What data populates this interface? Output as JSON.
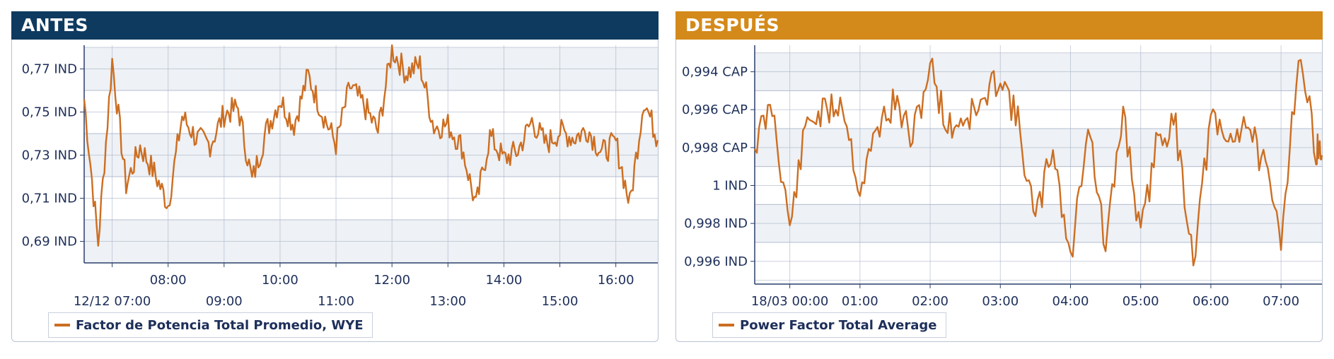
{
  "colors": {
    "antes_header": "#0f3a5f",
    "despues_header": "#d48a1a",
    "series": "#cc6e22",
    "band": "#eef1f5",
    "grid": "#a9b4c8",
    "axis": "#2a3f6b"
  },
  "chart_data": [
    {
      "type": "line",
      "title": "ANTES",
      "legend": "bottom-left",
      "grid": true,
      "y_ticks": [
        {
          "value": 0.77,
          "label": "0,77 IND"
        },
        {
          "value": 0.75,
          "label": "0,75 IND"
        },
        {
          "value": 0.73,
          "label": "0,73 IND"
        },
        {
          "value": 0.71,
          "label": "0,71 IND"
        },
        {
          "value": 0.69,
          "label": "0,69 IND"
        }
      ],
      "ylim": [
        0.68,
        0.781
      ],
      "xlim": [
        "12/12 06:30",
        "16:45"
      ],
      "x_ticks": [
        {
          "hour": 7,
          "label": "12/12 07:00",
          "row": 2
        },
        {
          "hour": 8,
          "label": "08:00",
          "row": 1
        },
        {
          "hour": 9,
          "label": "09:00",
          "row": 2
        },
        {
          "hour": 10,
          "label": "10:00",
          "row": 1
        },
        {
          "hour": 11,
          "label": "11:00",
          "row": 2
        },
        {
          "hour": 12,
          "label": "12:00",
          "row": 1
        },
        {
          "hour": 13,
          "label": "13:00",
          "row": 2
        },
        {
          "hour": 14,
          "label": "14:00",
          "row": 1
        },
        {
          "hour": 15,
          "label": "15:00",
          "row": 2
        },
        {
          "hour": 16,
          "label": "16:00",
          "row": 1
        }
      ],
      "series": [
        {
          "name": "Factor de Potencia Total Promedio, WYE",
          "x": [
            "06:30",
            "06:45",
            "07:00",
            "07:15",
            "07:30",
            "07:45",
            "08:00",
            "08:15",
            "08:30",
            "08:45",
            "09:00",
            "09:15",
            "09:30",
            "09:45",
            "10:00",
            "10:15",
            "10:30",
            "10:45",
            "11:00",
            "11:15",
            "11:30",
            "11:45",
            "12:00",
            "12:15",
            "12:30",
            "12:45",
            "13:00",
            "13:15",
            "13:30",
            "13:45",
            "14:00",
            "14:15",
            "14:30",
            "14:45",
            "15:00",
            "15:15",
            "15:30",
            "15:45",
            "16:00",
            "16:15",
            "16:30",
            "16:45"
          ],
          "values": [
            0.756,
            0.689,
            0.774,
            0.716,
            0.734,
            0.722,
            0.707,
            0.748,
            0.738,
            0.735,
            0.749,
            0.752,
            0.718,
            0.741,
            0.756,
            0.744,
            0.767,
            0.75,
            0.735,
            0.762,
            0.753,
            0.741,
            0.779,
            0.768,
            0.772,
            0.743,
            0.744,
            0.734,
            0.706,
            0.739,
            0.728,
            0.732,
            0.746,
            0.735,
            0.741,
            0.738,
            0.742,
            0.731,
            0.736,
            0.707,
            0.756,
            0.737
          ]
        }
      ]
    },
    {
      "type": "line",
      "title": "DESPUÉS",
      "legend": "bottom-left",
      "grid": true,
      "y_ticks": [
        {
          "value": -6,
          "label": "0,994 CAP"
        },
        {
          "value": -4,
          "label": "0,996 CAP"
        },
        {
          "value": -2,
          "label": "0,998 CAP"
        },
        {
          "value": 0,
          "label": "1 IND"
        },
        {
          "value": 2,
          "label": "0,998 IND"
        },
        {
          "value": 4,
          "label": "0,996 IND"
        }
      ],
      "ylim": [
        -7.4,
        5.2
      ],
      "xlim": [
        "18/03 23:30",
        "07:35"
      ],
      "x_ticks": [
        {
          "hour": 0,
          "label": "18/03 00:00",
          "row": 1
        },
        {
          "hour": 1,
          "label": "01:00",
          "row": 1
        },
        {
          "hour": 2,
          "label": "02:00",
          "row": 1
        },
        {
          "hour": 3,
          "label": "03:00",
          "row": 1
        },
        {
          "hour": 4,
          "label": "04:00",
          "row": 1
        },
        {
          "hour": 5,
          "label": "05:00",
          "row": 1
        },
        {
          "hour": 6,
          "label": "06:00",
          "row": 1
        },
        {
          "hour": 7,
          "label": "07:00",
          "row": 1
        }
      ],
      "series": [
        {
          "name": "Power Factor Total Average",
          "x": [
            "23:30",
            "23:45",
            "00:00",
            "00:15",
            "00:30",
            "00:45",
            "01:00",
            "01:15",
            "01:30",
            "01:45",
            "02:00",
            "02:15",
            "02:30",
            "02:45",
            "03:00",
            "03:15",
            "03:30",
            "03:45",
            "04:00",
            "04:15",
            "04:30",
            "04:45",
            "05:00",
            "05:15",
            "05:30",
            "05:45",
            "06:00",
            "06:15",
            "06:30",
            "06:45",
            "07:00",
            "07:15",
            "07:30",
            "07:35"
          ],
          "values": [
            -2.2,
            -4.2,
            2.2,
            -3.5,
            -3.8,
            -4.5,
            0.3,
            -3.1,
            -4.4,
            -2.4,
            -6.4,
            -3.0,
            -3.6,
            -4.2,
            -6.0,
            -3.3,
            2.0,
            -2.2,
            4.1,
            -3.5,
            3.5,
            -4.0,
            2.8,
            -2.8,
            -3.0,
            3.8,
            -3.4,
            -2.2,
            -3.6,
            -1.0,
            2.7,
            -7.0,
            -2.0,
            -1.6
          ]
        }
      ]
    }
  ]
}
